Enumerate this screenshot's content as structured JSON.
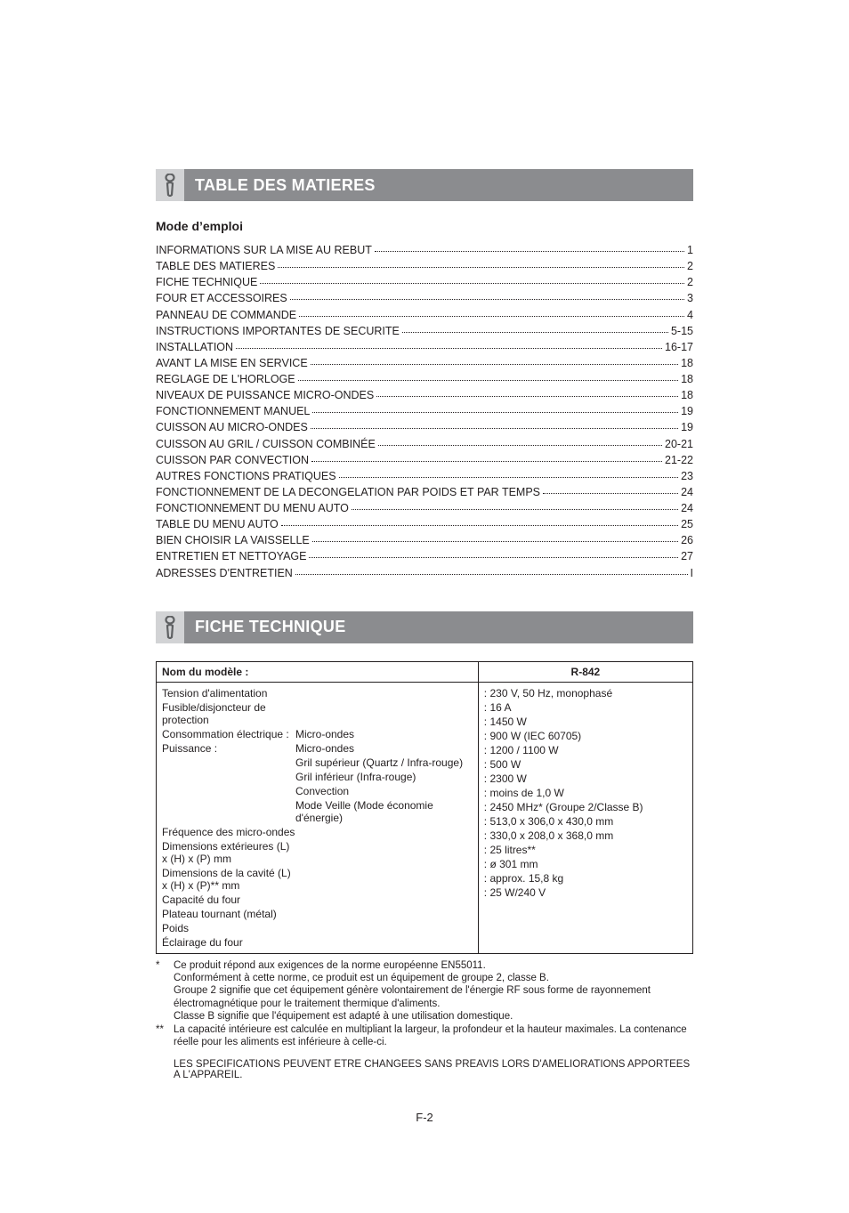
{
  "colors": {
    "header_bg": "#8b8c8f",
    "header_icon_bg": "#d2d3d5",
    "header_text": "#ffffff",
    "body_text": "#231f20",
    "icon_stroke": "#5f6163"
  },
  "section1": {
    "title": "TABLE DES MATIERES",
    "subhead": "Mode d’emploi"
  },
  "toc": [
    {
      "label": "INFORMATIONS SUR LA MISE AU REBUT",
      "page": "1"
    },
    {
      "label": "TABLE DES MATIERES",
      "page": "2"
    },
    {
      "label": "FICHE TECHNIQUE",
      "page": "2"
    },
    {
      "label": "FOUR ET ACCESSOIRES",
      "page": "3"
    },
    {
      "label": "PANNEAU DE COMMANDE",
      "page": "4"
    },
    {
      "label": "INSTRUCTIONS IMPORTANTES DE SECURITE",
      "page": " 5-15"
    },
    {
      "label": "INSTALLATION",
      "page": "16-17"
    },
    {
      "label": "AVANT LA MISE EN SERVICE",
      "page": "18"
    },
    {
      "label": "REGLAGE DE L'HORLOGE",
      "page": "18"
    },
    {
      "label": "NIVEAUX DE PUISSANCE MICRO-ONDES",
      "page": "18"
    },
    {
      "label": "FONCTIONNEMENT MANUEL",
      "page": "19"
    },
    {
      "label": "CUISSON AU MICRO-ONDES",
      "page": "19"
    },
    {
      "label": "CUISSON AU GRIL / CUISSON COMBINÉE",
      "page": "20-21"
    },
    {
      "label": "CUISSON PAR CONVECTION",
      "page": "21-22"
    },
    {
      "label": "AUTRES FONCTIONS PRATIQUES",
      "page": "23"
    },
    {
      "label": "FONCTIONNEMENT DE LA DECONGELATION PAR POIDS ET PAR TEMPS",
      "page": "24"
    },
    {
      "label": "FONCTIONNEMENT DU MENU AUTO",
      "page": "24"
    },
    {
      "label": "TABLE DU MENU AUTO",
      "page": "25"
    },
    {
      "label": "BIEN CHOISIR LA VAISSELLE",
      "page": "26"
    },
    {
      "label": "ENTRETIEN ET NETTOYAGE",
      "page": "27"
    },
    {
      "label": "ADRESSES D'ENTRETIEN",
      "page": " I"
    }
  ],
  "section2": {
    "title": "FICHE TECHNIQUE"
  },
  "specs": {
    "header_left": "Nom du modèle :",
    "header_right": "R-842",
    "rows": [
      {
        "left_label": "Tension d'alimentation",
        "left_sub": "",
        "right": ": 230 V, 50 Hz, monophasé"
      },
      {
        "left_label": "Fusible/disjoncteur de protection",
        "left_sub": "",
        "right": ": 16 A"
      },
      {
        "left_label": "Consommation électrique :",
        "left_sub": "Micro-ondes",
        "right": ": 1450 W"
      },
      {
        "left_label": "Puissance :",
        "left_sub": "Micro-ondes",
        "right": ": 900 W (IEC 60705)"
      },
      {
        "left_label": "",
        "left_sub": "Gril supérieur (Quartz / Infra-rouge)",
        "right": ": 1200 / 1100 W"
      },
      {
        "left_label": "",
        "left_sub": "Gril inférieur (Infra-rouge)",
        "right": ": 500 W"
      },
      {
        "left_label": "",
        "left_sub": "Convection",
        "right": ": 2300 W"
      },
      {
        "left_label": "",
        "left_sub": "Mode Veille (Mode économie d'énergie)",
        "right": ": moins de 1,0 W"
      },
      {
        "left_label": "Fréquence des micro-ondes",
        "left_sub": "",
        "right": ": 2450 MHz* (Groupe 2/Classe B)"
      },
      {
        "left_label": "Dimensions extérieures (L) x (H) x (P) mm",
        "left_sub": "",
        "right": ": 513,0 x 306,0 x 430,0 mm"
      },
      {
        "left_label": "Dimensions de la cavité (L) x (H) x (P)** mm",
        "left_sub": "",
        "right": ": 330,0 x 208,0 x 368,0 mm"
      },
      {
        "left_label": "Capacité du four",
        "left_sub": "",
        "right": ": 25 litres**"
      },
      {
        "left_label": "Plateau tournant (métal)",
        "left_sub": "",
        "right": ": ø 301 mm"
      },
      {
        "left_label": "Poids",
        "left_sub": "",
        "right": ": approx. 15,8 kg"
      },
      {
        "left_label": "Éclairage du four",
        "left_sub": "",
        "right": ": 25 W/240 V"
      }
    ]
  },
  "footnotes": [
    {
      "mark": "*",
      "text": "Ce produit répond aux exigences de la norme européenne EN55011."
    },
    {
      "mark": "",
      "text": "Conformément à cette norme, ce produit est un équipement de groupe 2, classe B."
    },
    {
      "mark": "",
      "text": "Groupe 2 signifie que cet équipement génère volontairement de l'énergie RF sous forme de rayonnement électromagnétique pour le traitement thermique d'aliments."
    },
    {
      "mark": "",
      "text": "Classe B signifie que l'équipement est adapté à une utilisation domestique."
    },
    {
      "mark": "**",
      "text": "La capacité intérieure est calculée en multipliant la largeur, la profondeur et la hauteur maximales. La contenance réelle pour les aliments est inférieure à celle-ci."
    }
  ],
  "final_note": "LES SPECIFICATIONS PEUVENT ETRE CHANGEES SANS PREAVIS LORS D'AMELIORATIONS APPORTEES A L'APPAREIL.",
  "page_number": "F-2"
}
